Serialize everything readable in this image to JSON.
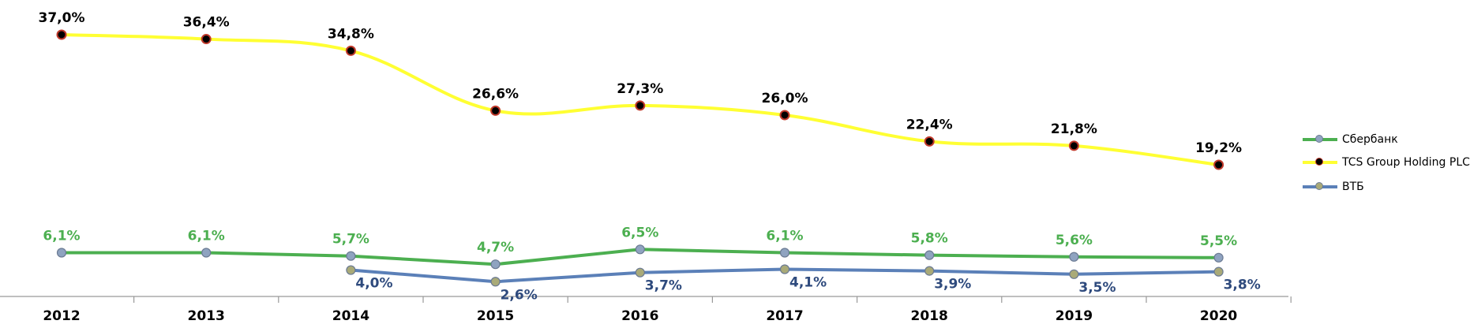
{
  "chart_data": {
    "type": "line",
    "categories": [
      "2012",
      "2013",
      "2014",
      "2015",
      "2016",
      "2017",
      "2018",
      "2019",
      "2020"
    ],
    "series": [
      {
        "name": "Сбербанк",
        "color": "#4CAF50",
        "marker_color": "#8FA3C0",
        "values": [
          6.1,
          6.1,
          5.7,
          4.7,
          6.5,
          6.1,
          5.8,
          5.6,
          5.5
        ],
        "labels": [
          "6,1%",
          "6,1%",
          "5,7%",
          "4,7%",
          "6,5%",
          "6,1%",
          "5,8%",
          "5,6%",
          "5,5%"
        ],
        "label_color": "#4CAF50",
        "label_position": "above"
      },
      {
        "name": "TCS Group Holding PLC",
        "color": "#FFFF33",
        "marker_color": "#000000",
        "marker_edge": "#C0392B",
        "values": [
          37.0,
          36.4,
          34.8,
          26.6,
          27.3,
          26.0,
          22.4,
          21.8,
          19.2
        ],
        "labels": [
          "37,0%",
          "36,4%",
          "34,8%",
          "26,6%",
          "27,3%",
          "26,0%",
          "22,4%",
          "21,8%",
          "19,2%"
        ],
        "label_color": "#000000",
        "label_position": "above",
        "smooth": true
      },
      {
        "name": "ВТБ",
        "color": "#5B80B8",
        "marker_color": "#A9AA78",
        "values": [
          null,
          null,
          4.0,
          2.6,
          3.7,
          4.1,
          3.9,
          3.5,
          3.8
        ],
        "labels": [
          null,
          null,
          "4,0%",
          "2,6%",
          "3,7%",
          "4,1%",
          "3,9%",
          "3,5%",
          "3,8%"
        ],
        "label_color": "#2E4A7D",
        "label_position": "below-right"
      }
    ],
    "grid": false,
    "legend": "right"
  }
}
